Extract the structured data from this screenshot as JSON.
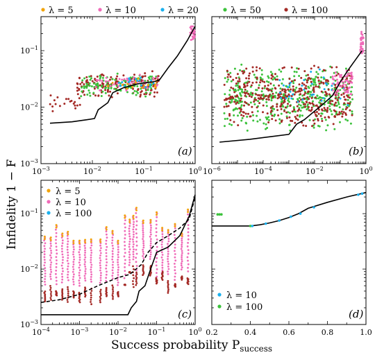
{
  "colors": {
    "lambda5": "#f2a40c",
    "lambda10": "#f06ab8",
    "lambda20": "#1ab0ee",
    "lambda50": "#3cc23c",
    "lambda100": "#a42a26",
    "bound": "#000000"
  },
  "chart_data": {
    "type": "scatter",
    "xlabel": "Success probability P_success",
    "ylabel": "Infidelity 1 − F",
    "legend_top": [
      "λ = 5",
      "λ = 10",
      "λ = 20",
      "λ = 50",
      "λ = 100"
    ],
    "panels": [
      {
        "label": "(a)",
        "xscale": "log",
        "xlim": [
          0.001,
          1
        ],
        "yscale": "log",
        "ylim": [
          0.001,
          0.4
        ],
        "xticks": [
          "10^-3",
          "10^-2",
          "10^-1",
          "10^0"
        ],
        "yticks": [
          "10^-3",
          "10^-2",
          "10^-1"
        ],
        "series_note": "lambda5, lambda10, lambda20, lambda50, lambda100",
        "bound": [
          [
            0.0015,
            0.0052
          ],
          [
            0.004,
            0.0055
          ],
          [
            0.008,
            0.006
          ],
          [
            0.011,
            0.0063
          ],
          [
            0.013,
            0.009
          ],
          [
            0.02,
            0.012
          ],
          [
            0.025,
            0.018
          ],
          [
            0.04,
            0.022
          ],
          [
            0.08,
            0.026
          ],
          [
            0.15,
            0.028
          ],
          [
            0.2,
            0.03
          ],
          [
            0.3,
            0.05
          ],
          [
            0.45,
            0.08
          ],
          [
            0.7,
            0.15
          ],
          [
            1.0,
            0.27
          ]
        ],
        "clusters": [
          {
            "series": "lambda100",
            "x": [
              0.005,
              0.2
            ],
            "y": [
              0.014,
              0.045
            ],
            "n": 180
          },
          {
            "series": "lambda50",
            "x": [
              0.006,
              0.18
            ],
            "y": [
              0.015,
              0.04
            ],
            "n": 120
          },
          {
            "series": "lambda10",
            "x": [
              0.01,
              0.2
            ],
            "y": [
              0.018,
              0.04
            ],
            "n": 40
          },
          {
            "series": "lambda5",
            "x": [
              0.02,
              0.2
            ],
            "y": [
              0.02,
              0.035
            ],
            "n": 20
          },
          {
            "series": "lambda20",
            "x": [
              0.03,
              0.2
            ],
            "y": [
              0.02,
              0.035
            ],
            "n": 20
          },
          {
            "series": "lambda100",
            "x": [
              0.0015,
              0.006
            ],
            "y": [
              0.008,
              0.02
            ],
            "n": 20
          },
          {
            "series": "lambda10",
            "x": [
              0.8,
              1.0
            ],
            "y": [
              0.15,
              0.3
            ],
            "n": 25
          }
        ]
      },
      {
        "label": "(b)",
        "xscale": "log",
        "xlim": [
          1e-06,
          1
        ],
        "yscale": "log",
        "ylim": [
          0.001,
          0.4
        ],
        "xticks": [
          "10^-6",
          "10^-4",
          "10^-2",
          "10^0"
        ],
        "bound": [
          [
            2e-06,
            0.0024
          ],
          [
            3e-05,
            0.0027
          ],
          [
            0.0002,
            0.003
          ],
          [
            0.001,
            0.0033
          ],
          [
            0.002,
            0.005
          ],
          [
            0.004,
            0.006
          ],
          [
            0.01,
            0.0085
          ],
          [
            0.02,
            0.011
          ],
          [
            0.05,
            0.016
          ],
          [
            0.1,
            0.028
          ],
          [
            0.2,
            0.045
          ],
          [
            0.4,
            0.07
          ],
          [
            0.7,
            0.1
          ]
        ],
        "clusters": [
          {
            "series": "lambda50",
            "x": [
              3e-06,
              0.3
            ],
            "y": [
              0.0035,
              0.06
            ],
            "n": 420
          },
          {
            "series": "lambda100",
            "x": [
              3e-06,
              0.3
            ],
            "y": [
              0.004,
              0.06
            ],
            "n": 420
          },
          {
            "series": "lambda20",
            "x": [
              0.0003,
              0.2
            ],
            "y": [
              0.01,
              0.05
            ],
            "n": 35
          },
          {
            "series": "lambda10",
            "x": [
              0.05,
              0.3
            ],
            "y": [
              0.015,
              0.05
            ],
            "n": 60
          },
          {
            "series": "lambda10",
            "x": [
              0.6,
              0.8
            ],
            "y": [
              0.08,
              0.25
            ],
            "n": 30
          }
        ]
      },
      {
        "label": "(c)",
        "xscale": "log",
        "xlim": [
          0.0001,
          1
        ],
        "yscale": "log",
        "ylim": [
          0.001,
          0.4
        ],
        "xticks": [
          "10^-4",
          "10^-3",
          "10^-2",
          "10^-1",
          "10^0"
        ],
        "yticks": [
          "10^-3",
          "10^-2",
          "10^-1"
        ],
        "legend": [
          "λ = 5",
          "λ = 10",
          "λ = 100"
        ],
        "bound_solid": [
          [
            0.0001,
            0.0015
          ],
          [
            0.001,
            0.0015
          ],
          [
            0.01,
            0.0015
          ],
          [
            0.018,
            0.0015
          ],
          [
            0.022,
            0.002
          ],
          [
            0.03,
            0.0026
          ],
          [
            0.035,
            0.004
          ],
          [
            0.05,
            0.005
          ],
          [
            0.07,
            0.01
          ],
          [
            0.1,
            0.02
          ],
          [
            0.2,
            0.025
          ],
          [
            0.4,
            0.04
          ],
          [
            0.7,
            0.09
          ],
          [
            1.0,
            0.22
          ]
        ],
        "bound_dashed": [
          [
            0.0001,
            0.0025
          ],
          [
            0.0003,
            0.0028
          ],
          [
            0.001,
            0.0035
          ],
          [
            0.003,
            0.005
          ],
          [
            0.01,
            0.007
          ],
          [
            0.02,
            0.008
          ],
          [
            0.04,
            0.012
          ],
          [
            0.06,
            0.02
          ],
          [
            0.1,
            0.03
          ],
          [
            0.2,
            0.04
          ],
          [
            0.4,
            0.055
          ],
          [
            0.7,
            0.08
          ],
          [
            1.0,
            0.2
          ]
        ],
        "columns": [
          0.000125,
          0.00018,
          0.00025,
          0.00036,
          0.0005,
          0.0007,
          0.001,
          0.0014,
          0.002,
          0.0035,
          0.005,
          0.0072,
          0.01,
          0.015,
          0.02,
          0.025,
          0.03,
          0.045,
          0.07,
          0.1,
          0.14,
          0.2,
          0.3,
          0.45,
          0.65
        ]
      },
      {
        "label": "(d)",
        "xscale": "linear",
        "xlim": [
          0.2,
          1.0
        ],
        "yscale": "log",
        "ylim": [
          0.001,
          0.4
        ],
        "xticks": [
          "0.2",
          "0.4",
          "0.6",
          "0.8",
          "1.0"
        ],
        "legend": [
          "λ = 10",
          "λ = 100"
        ],
        "bound": [
          [
            0.2,
            0.06
          ],
          [
            0.3,
            0.06
          ],
          [
            0.4,
            0.06
          ],
          [
            0.45,
            0.063
          ],
          [
            0.5,
            0.068
          ],
          [
            0.55,
            0.075
          ],
          [
            0.6,
            0.085
          ],
          [
            0.65,
            0.1
          ],
          [
            0.7,
            0.125
          ],
          [
            0.8,
            0.16
          ],
          [
            0.9,
            0.2
          ],
          [
            1.0,
            0.24
          ]
        ],
        "points_lambda10": [
          [
            0.41,
            0.06
          ],
          [
            0.48,
            0.066
          ],
          [
            0.55,
            0.075
          ],
          [
            0.61,
            0.088
          ],
          [
            0.66,
            0.1
          ],
          [
            0.73,
            0.13
          ],
          [
            0.96,
            0.22
          ],
          [
            0.98,
            0.23
          ]
        ],
        "points_lambda100": [
          [
            0.23,
            0.097
          ],
          [
            0.24,
            0.097
          ],
          [
            0.25,
            0.097
          ],
          [
            0.4,
            0.06
          ]
        ]
      }
    ]
  },
  "labels": {
    "legend_top": [
      "λ = 5",
      "λ = 10",
      "λ = 20",
      "λ = 50",
      "λ = 100"
    ],
    "panel_a": "(a)",
    "panel_b": "(b)",
    "panel_c": "(c)",
    "panel_d": "(d)",
    "legend_c": [
      "λ = 5",
      "λ = 10",
      "λ = 100"
    ],
    "legend_d": [
      "λ = 10",
      "λ = 100"
    ],
    "ylabel": "Infidelity 1 − F",
    "xlabel_main": "Success probability P",
    "xlabel_sub": "success"
  }
}
